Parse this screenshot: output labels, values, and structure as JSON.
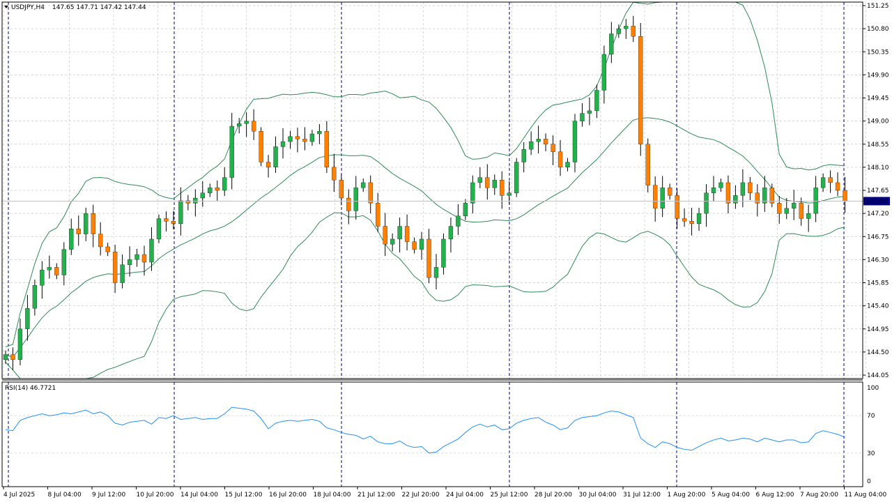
{
  "window": {
    "symbol_header": "USDJPY,H4",
    "ohlc": "147.65 147.71 147.42 147.44",
    "current_price_label": "147.44"
  },
  "colors": {
    "background": "#ffffff",
    "grid": "#c8c8c8",
    "bull_candle": "#22b14c",
    "bear_candle": "#ff7f00",
    "wick": "#000000",
    "bollinger": "#2e8b57",
    "rsi_line": "#1e90ff",
    "period_separator": "#000080",
    "price_tag_bg": "#000080",
    "price_tag_text": "#ffffff"
  },
  "rsi": {
    "label": "RSI(14) 46.7721"
  },
  "chart_data": [
    {
      "type": "candlestick",
      "title": "USDJPY,H4",
      "y_axis_ticks": [
        "151.25",
        "150.80",
        "150.35",
        "149.90",
        "149.45",
        "149.00",
        "148.55",
        "148.10",
        "147.65",
        "147.20",
        "146.75",
        "146.30",
        "145.85",
        "145.40",
        "144.95",
        "144.50",
        "144.05"
      ],
      "ylim": [
        144.05,
        151.25
      ],
      "x_axis_labels": [
        "4 Jul 2025",
        "8 Jul 04:00",
        "9 Jul 12:00",
        "10 Jul 20:00",
        "14 Jul 04:00",
        "15 Jul 12:00",
        "16 Jul 20:00",
        "18 Jul 04:00",
        "21 Jul 12:00",
        "22 Jul 20:00",
        "24 Jul 04:00",
        "25 Jul 12:00",
        "28 Jul 20:00",
        "30 Jul 04:00",
        "31 Jul 12:00",
        "1 Aug 20:00",
        "5 Aug 04:00",
        "6 Aug 12:00",
        "7 Aug 20:00",
        "11 Aug 04:00"
      ],
      "grid": true,
      "indicators": [
        "Bollinger Bands"
      ],
      "series": [
        {
          "name": "USDJPY,H4",
          "close_approx": [
            144.45,
            144.35,
            144.95,
            145.35,
            145.8,
            146.1,
            146.15,
            146.0,
            146.5,
            146.9,
            146.8,
            147.2,
            146.8,
            146.55,
            146.45,
            145.85,
            146.2,
            146.3,
            146.4,
            146.25,
            146.7,
            147.1,
            147.05,
            147.0,
            147.45,
            147.4,
            147.5,
            147.6,
            147.7,
            147.65,
            147.9,
            148.9,
            148.95,
            149.0,
            148.8,
            148.2,
            148.1,
            148.5,
            148.6,
            148.7,
            148.65,
            148.6,
            148.75,
            148.8,
            148.1,
            147.85,
            147.5,
            147.25,
            147.7,
            147.8,
            147.4,
            146.95,
            146.6,
            146.7,
            146.95,
            146.65,
            146.5,
            146.7,
            145.95,
            146.15,
            146.7,
            146.95,
            147.15,
            147.4,
            147.8,
            147.9,
            147.7,
            147.85,
            147.55,
            147.6,
            148.2,
            148.45,
            148.6,
            148.65,
            148.55,
            148.4,
            148.1,
            148.2,
            149.0,
            149.15,
            149.2,
            149.6,
            150.3,
            150.7,
            150.8,
            150.85,
            150.65,
            148.55,
            147.75,
            147.3,
            147.7,
            147.55,
            147.1,
            147.05,
            147.0,
            147.2,
            147.6,
            147.7,
            147.8,
            147.4,
            147.55,
            147.8,
            147.6,
            147.4,
            147.7,
            147.4,
            147.2,
            147.3,
            147.4,
            147.1,
            147.2,
            147.7,
            147.9,
            147.8,
            147.65,
            147.44
          ]
        }
      ]
    },
    {
      "type": "line",
      "title": "RSI(14) 46.7721",
      "y_axis_ticks": [
        "100",
        "70",
        "30",
        "0"
      ],
      "ylim": [
        0,
        100
      ],
      "grid": true,
      "series": [
        {
          "name": "RSI(14)",
          "values": [
            55,
            54,
            65,
            68,
            70,
            72,
            70,
            71,
            73,
            72,
            74,
            76,
            72,
            74,
            70,
            62,
            60,
            63,
            64,
            65,
            61,
            68,
            67,
            70,
            66,
            67,
            68,
            66,
            67,
            67,
            72,
            79,
            78,
            77,
            75,
            67,
            56,
            62,
            64,
            65,
            64,
            65,
            66,
            64,
            57,
            55,
            52,
            50,
            49,
            45,
            48,
            42,
            40,
            40,
            43,
            38,
            36,
            37,
            30,
            31,
            37,
            41,
            45,
            52,
            58,
            61,
            58,
            60,
            55,
            56,
            62,
            65,
            67,
            68,
            63,
            60,
            55,
            57,
            65,
            68,
            69,
            70,
            73,
            75,
            74,
            71,
            68,
            46,
            40,
            36,
            42,
            40,
            36,
            34,
            33,
            37,
            41,
            44,
            46,
            43,
            44,
            46,
            45,
            42,
            46,
            44,
            42,
            44,
            44,
            41,
            42,
            51,
            54,
            52,
            50,
            47
          ]
        }
      ]
    }
  ]
}
